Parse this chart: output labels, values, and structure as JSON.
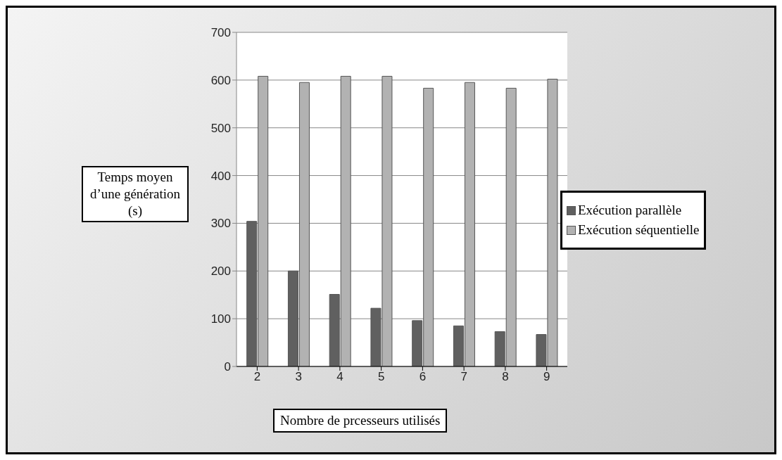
{
  "chart_data": {
    "type": "bar",
    "xlabel": "Nombre de prcesseurs utilisés",
    "ylabel": "Temps moyen d’une génération (s)",
    "categories": [
      "2",
      "3",
      "4",
      "5",
      "6",
      "7",
      "8",
      "9"
    ],
    "series": [
      {
        "name": "Exécution parallèle",
        "color": "#606060",
        "values": [
          304,
          200,
          151,
          122,
          96,
          85,
          73,
          67
        ]
      },
      {
        "name": "Exécution séquentielle",
        "color": "#b2b2b2",
        "values": [
          608,
          595,
          608,
          608,
          583,
          595,
          583,
          602
        ]
      }
    ],
    "ylim": [
      0,
      700
    ],
    "yticks": [
      0,
      100,
      200,
      300,
      400,
      500,
      600,
      700
    ],
    "grid": "y",
    "legend": "right"
  }
}
